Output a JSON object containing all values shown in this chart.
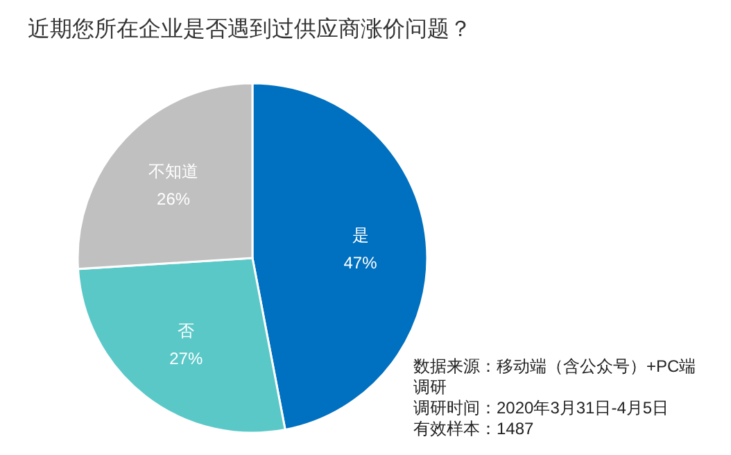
{
  "chart_data": {
    "type": "pie",
    "title": "近期您所在企业是否遇到过供应商涨价问题？",
    "categories": [
      "是",
      "否",
      "不知道"
    ],
    "values": [
      47,
      27,
      26
    ],
    "value_labels": [
      "47%",
      "27%",
      "26%"
    ],
    "colors": [
      "#0070c0",
      "#5bc8c8",
      "#c0c0c0"
    ],
    "annotations": [
      "数据来源：移动端（含公众号）+PC端调研",
      "调研时间：2020年3月31日-4月5日",
      "有效样本：1487"
    ]
  }
}
